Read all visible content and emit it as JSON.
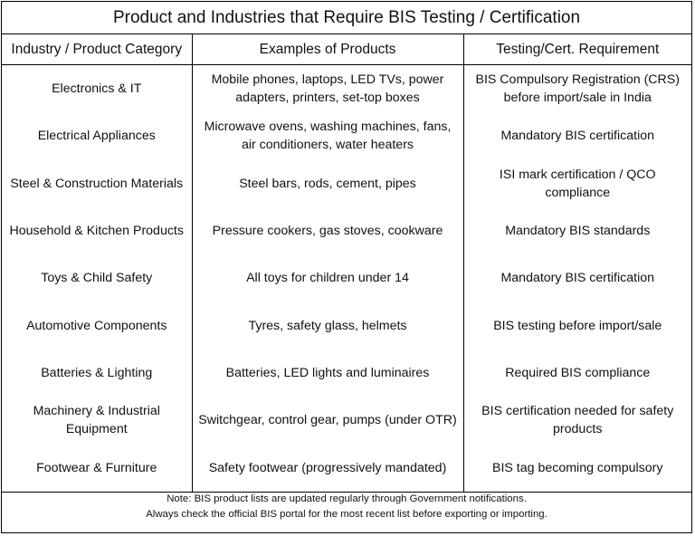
{
  "title": "Product and Industries that Require BIS Testing / Certification",
  "headers": [
    "Industry / Product Category",
    "Examples of Products",
    "Testing/Cert. Requirement"
  ],
  "rows": [
    {
      "industry": "Electronics & IT",
      "examples": "Mobile phones, laptops, LED TVs, power adapters, printers, set-top boxes",
      "requirement": "BIS Compulsory Registration (CRS) before import/sale in India"
    },
    {
      "industry": "Electrical Appliances",
      "examples": "Microwave ovens, washing machines, fans, air conditioners, water heaters",
      "requirement": "Mandatory BIS certification"
    },
    {
      "industry": "Steel & Construction Materials",
      "examples": "Steel bars, rods, cement, pipes",
      "requirement": "ISI mark certification / QCO compliance"
    },
    {
      "industry": "Household & Kitchen Products",
      "examples": "Pressure cookers, gas stoves, cookware",
      "requirement": "Mandatory BIS standards"
    },
    {
      "industry": "Toys & Child Safety",
      "examples": "All toys for children under 14",
      "requirement": "Mandatory BIS certification"
    },
    {
      "industry": "Automotive Components",
      "examples": "Tyres, safety glass, helmets",
      "requirement": "BIS testing before import/sale"
    },
    {
      "industry": "Batteries & Lighting",
      "examples": "Batteries, LED lights and luminaires",
      "requirement": "Required BIS compliance"
    },
    {
      "industry": "Machinery & Industrial Equipment",
      "examples": "Switchgear, control gear, pumps (under OTR)",
      "requirement": "BIS certification needed for safety products"
    },
    {
      "industry": "Footwear & Furniture",
      "examples": "Safety footwear (progressively mandated)",
      "requirement": "BIS tag becoming compulsory"
    }
  ],
  "note": {
    "line1": "Note: BIS product lists are updated regularly through Government notifications.",
    "line2": "Always check the official BIS portal for the most recent list before exporting or importing."
  }
}
